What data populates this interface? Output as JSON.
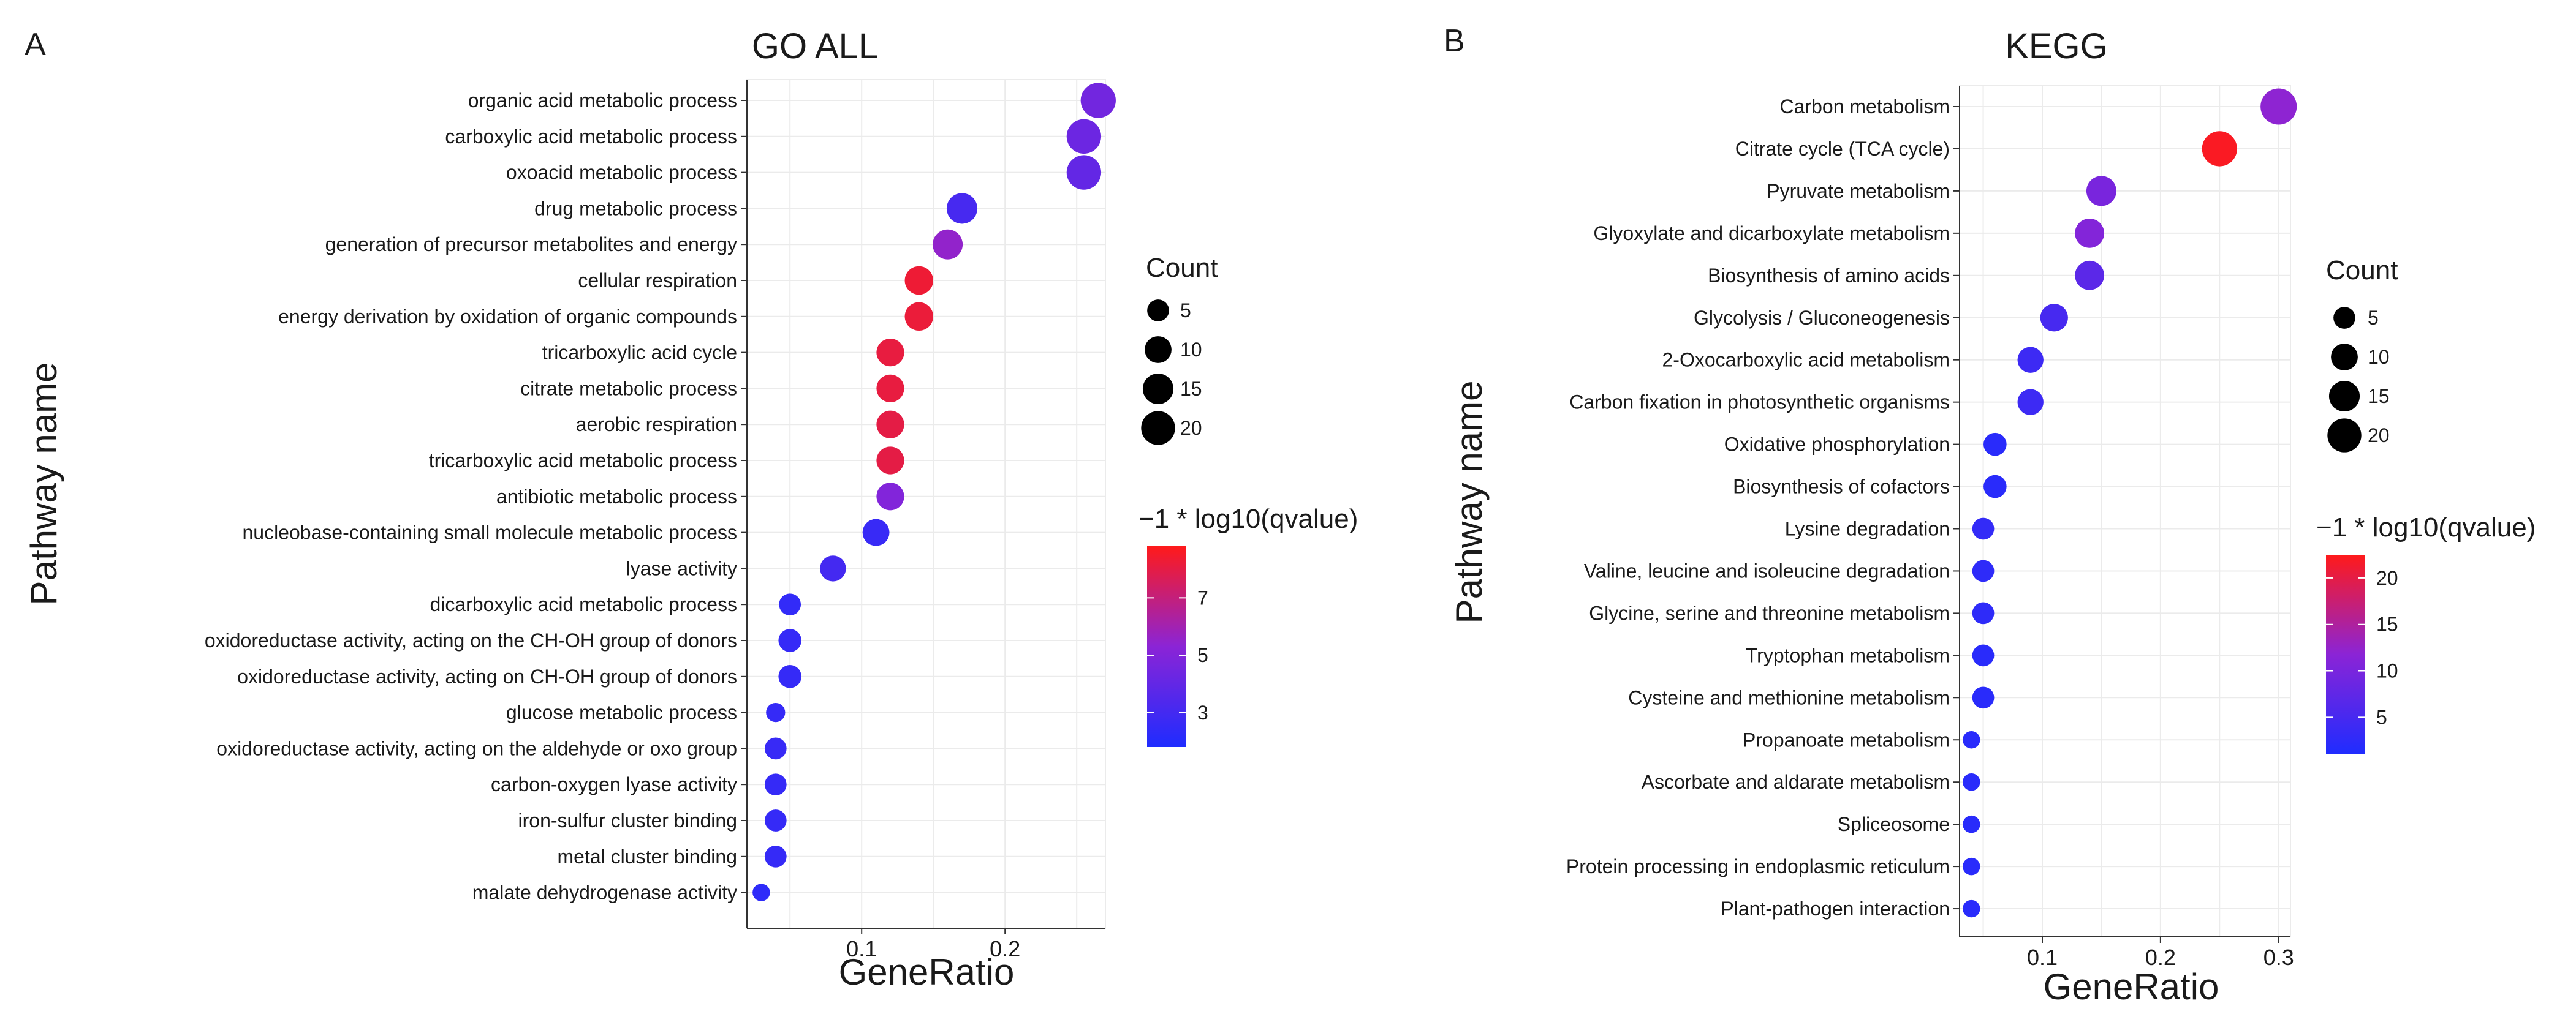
{
  "chart_data": [
    {
      "type": "scatter",
      "panel_label": "A",
      "title": "GO  ALL",
      "xlabel": "GeneRatio",
      "ylabel": "Pathway name",
      "xlim": [
        0.02,
        0.27
      ],
      "xticks": [
        0.1,
        0.2
      ],
      "xtick_labels": [
        "0.1",
        "0.2"
      ],
      "grid": true,
      "categories": [
        "organic acid metabolic process",
        "carboxylic acid metabolic process",
        "oxoacid metabolic process",
        "drug metabolic process",
        "generation of precursor metabolites and energy",
        "cellular respiration",
        "energy derivation by oxidation of organic compounds",
        "tricarboxylic acid cycle",
        "citrate metabolic process",
        "aerobic respiration",
        "tricarboxylic acid metabolic process",
        "antibiotic metabolic process",
        "nucleobase-containing small molecule metabolic process",
        "lyase activity",
        "dicarboxylic acid metabolic process",
        "oxidoreductase activity, acting on the CH-OH group of donors",
        "oxidoreductase activity, acting on CH-OH group of donors",
        "glucose metabolic process",
        "oxidoreductase activity, acting on the aldehyde or oxo group",
        "carbon-oxygen lyase activity",
        "iron-sulfur cluster binding",
        "metal cluster binding",
        "malate dehydrogenase activity"
      ],
      "gene_ratio": [
        0.265,
        0.255,
        0.255,
        0.17,
        0.16,
        0.14,
        0.14,
        0.12,
        0.12,
        0.12,
        0.12,
        0.12,
        0.11,
        0.08,
        0.05,
        0.05,
        0.05,
        0.04,
        0.04,
        0.04,
        0.04,
        0.04,
        0.03
      ],
      "count": [
        22,
        21,
        21,
        15,
        14,
        12,
        12,
        11,
        11,
        11,
        11,
        11,
        10,
        9,
        5,
        6,
        6,
        3,
        5,
        5,
        5,
        5,
        2
      ],
      "neg_log10_qvalue": [
        4.5,
        4.3,
        4.0,
        3.1,
        5.5,
        8.3,
        8.2,
        8.1,
        8.1,
        8.0,
        8.0,
        5.0,
        2.6,
        3.0,
        2.4,
        2.5,
        2.5,
        2.5,
        2.6,
        2.5,
        2.5,
        2.5,
        2.3
      ],
      "size_legend": {
        "title": "Count",
        "values": [
          5,
          10,
          15,
          20
        ],
        "labels": [
          "5",
          "10",
          "15",
          "20"
        ]
      },
      "color_legend": {
        "title": "−1 * log10(qvalue)",
        "range": [
          1.8,
          8.8
        ],
        "ticks": [
          3,
          5,
          7
        ],
        "tick_labels": [
          "3",
          "5",
          "7"
        ],
        "low_color": "#1f2cff",
        "mid_color": "#8b24d6",
        "high_color": "#ff1a1a"
      }
    },
    {
      "type": "scatter",
      "panel_label": "B",
      "title": "KEGG",
      "xlabel": "GeneRatio",
      "ylabel": "Pathway name",
      "xlim": [
        0.03,
        0.31
      ],
      "xticks": [
        0.1,
        0.2,
        0.3
      ],
      "xtick_labels": [
        "0.1",
        "0.2",
        "0.3"
      ],
      "grid": true,
      "categories": [
        "Carbon metabolism",
        "Citrate cycle (TCA cycle)",
        "Pyruvate metabolism",
        "Glyoxylate and dicarboxylate metabolism",
        "Biosynthesis of amino acids",
        "Glycolysis / Gluconeogenesis",
        "2-Oxocarboxylic acid metabolism",
        "Carbon fixation in photosynthetic organisms",
        "Oxidative phosphorylation",
        "Biosynthesis of cofactors",
        "Lysine degradation",
        "Valine, leucine and isoleucine degradation",
        "Glycine, serine and threonine metabolism",
        "Tryptophan metabolism",
        "Cysteine and methionine metabolism",
        "Propanoate metabolism",
        "Ascorbate and aldarate metabolism",
        "Spliceosome",
        "Protein processing in endoplasmic reticulum",
        "Plant-pathogen interaction"
      ],
      "gene_ratio": [
        0.3,
        0.25,
        0.15,
        0.14,
        0.14,
        0.11,
        0.09,
        0.09,
        0.06,
        0.06,
        0.05,
        0.05,
        0.05,
        0.05,
        0.05,
        0.04,
        0.04,
        0.04,
        0.04,
        0.04
      ],
      "count": [
        24,
        22,
        14,
        13,
        13,
        11,
        9,
        9,
        6,
        6,
        5,
        5,
        5,
        5,
        5,
        2,
        2,
        2,
        2,
        2
      ],
      "neg_log10_qvalue": [
        12,
        22,
        10,
        11,
        7,
        5,
        4,
        4,
        2,
        2,
        3,
        2.5,
        2.5,
        2,
        2,
        2,
        2,
        2,
        2,
        2
      ],
      "size_legend": {
        "title": "Count",
        "values": [
          5,
          10,
          15,
          20
        ],
        "labels": [
          "5",
          "10",
          "15",
          "20"
        ]
      },
      "color_legend": {
        "title": "−1 * log10(qvalue)",
        "range": [
          1,
          22.5
        ],
        "ticks": [
          5,
          10,
          15,
          20
        ],
        "tick_labels": [
          "5",
          "10",
          "15",
          "20"
        ],
        "low_color": "#1f2cff",
        "mid_color": "#8b24d6",
        "high_color": "#ff1a1a"
      }
    }
  ]
}
